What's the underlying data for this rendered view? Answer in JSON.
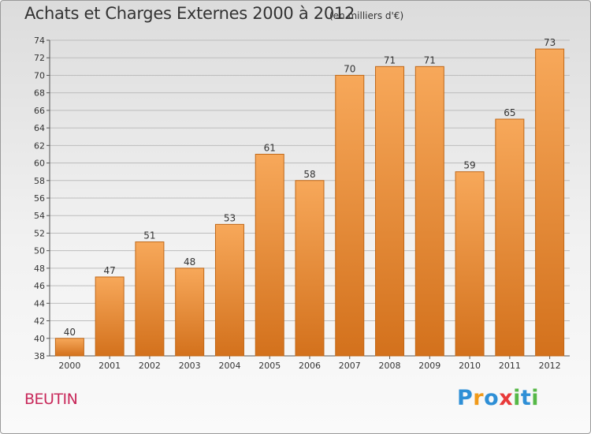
{
  "title": "Achats et Charges Externes 2000 à 2012",
  "unit_note": "(en milliers d'€)",
  "place_label": "BEUTIN",
  "logo": {
    "letters": [
      {
        "char": "P",
        "color": "#2e8fd6"
      },
      {
        "char": "r",
        "color": "#f09a1a"
      },
      {
        "char": "o",
        "color": "#2e8fd6"
      },
      {
        "char": "x",
        "color": "#e83a3a"
      },
      {
        "char": "i",
        "color": "#56b847"
      },
      {
        "char": "t",
        "color": "#2e8fd6"
      },
      {
        "char": "i",
        "color": "#56b847"
      }
    ]
  },
  "colors": {
    "bar_top": "#f7a85a",
    "bar_bottom": "#d3711c",
    "bar_border": "#c06818",
    "grid": "#bdbdbd",
    "text": "#333333"
  },
  "chart_data": {
    "type": "bar",
    "categories": [
      "2000",
      "2001",
      "2002",
      "2003",
      "2004",
      "2005",
      "2006",
      "2007",
      "2008",
      "2009",
      "2010",
      "2011",
      "2012"
    ],
    "values": [
      40,
      47,
      51,
      48,
      53,
      61,
      58,
      70,
      71,
      71,
      59,
      65,
      73
    ],
    "title": "Achats et Charges Externes 2000 à 2012",
    "ylim": [
      38,
      74
    ],
    "yticks": [
      38,
      40,
      42,
      44,
      46,
      48,
      50,
      52,
      54,
      56,
      58,
      60,
      62,
      64,
      66,
      68,
      70,
      72,
      74
    ],
    "grid": true,
    "data_labels": true
  }
}
